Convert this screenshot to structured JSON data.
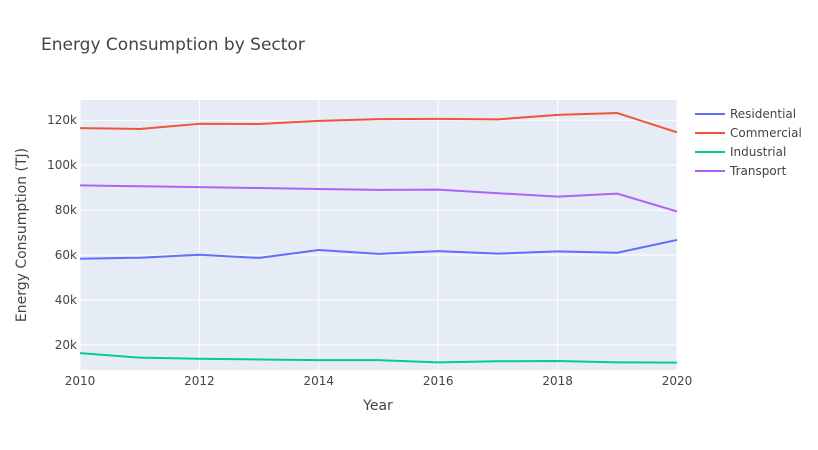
{
  "chart_data": {
    "type": "line",
    "title": "Energy Consumption by Sector",
    "xlabel": "Year",
    "ylabel": "Energy Consumption (TJ)",
    "x": [
      2010,
      2011,
      2012,
      2013,
      2014,
      2015,
      2016,
      2017,
      2018,
      2019,
      2020
    ],
    "xlim": [
      2010,
      2020
    ],
    "ylim": [
      8800,
      129000
    ],
    "xticks": [
      2010,
      2012,
      2014,
      2016,
      2018,
      2020
    ],
    "xtick_labels": [
      "2010",
      "2012",
      "2014",
      "2016",
      "2018",
      "2020"
    ],
    "yticks": [
      20000,
      40000,
      60000,
      80000,
      100000,
      120000
    ],
    "ytick_labels": [
      "20k",
      "40k",
      "60k",
      "80k",
      "100k",
      "120k"
    ],
    "grid": true,
    "legend_position": "top-right",
    "series": [
      {
        "name": "Residential",
        "color": "#636efa",
        "values": [
          58300,
          58800,
          60100,
          58700,
          62200,
          60500,
          61700,
          60600,
          61600,
          61000,
          66700
        ]
      },
      {
        "name": "Commercial",
        "color": "#ef553b",
        "values": [
          116500,
          116100,
          118400,
          118300,
          119700,
          120500,
          120600,
          120400,
          122400,
          123200,
          114600
        ]
      },
      {
        "name": "Industrial",
        "color": "#00cc96",
        "values": [
          16300,
          14300,
          13800,
          13500,
          13200,
          13200,
          12200,
          12700,
          12800,
          12200,
          12100
        ]
      },
      {
        "name": "Transport",
        "color": "#ab63fa",
        "values": [
          91000,
          90600,
          90200,
          89800,
          89400,
          89000,
          89100,
          87500,
          86000,
          87300,
          79400
        ]
      }
    ]
  }
}
